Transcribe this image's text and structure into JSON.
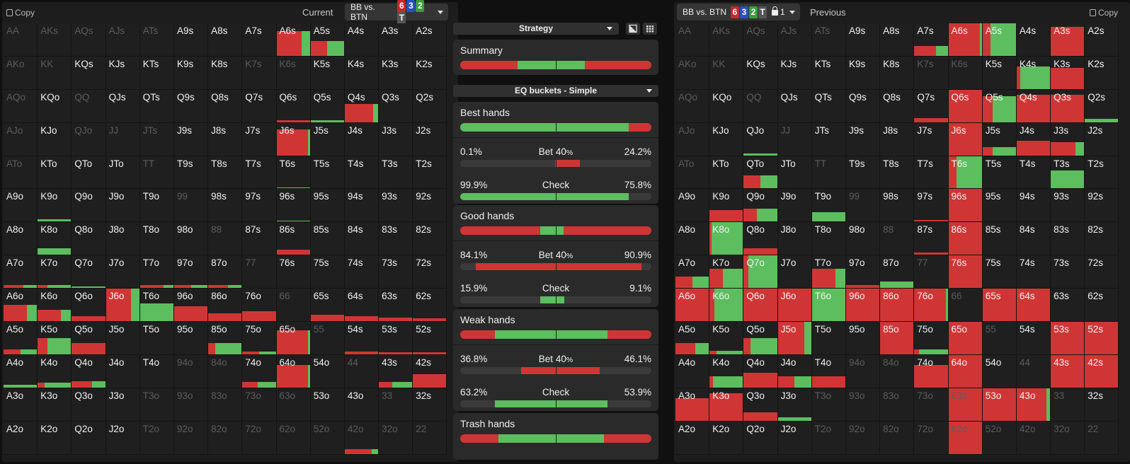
{
  "colors": {
    "bet": "#d03535",
    "check": "#5cbe5e",
    "panel": "#1d1d1d"
  },
  "board": [
    {
      "rank": "6",
      "color": "#c62828"
    },
    {
      "rank": "3",
      "color": "#2750c4"
    },
    {
      "rank": "2",
      "color": "#3a9d3a"
    },
    {
      "rank": "T",
      "color": "#555555"
    }
  ],
  "left": {
    "copy_label": "Copy",
    "label": "Current",
    "spot": "BB vs. BTN",
    "cells": {
      "A6s": [
        [
          0.75,
          0.75,
          0.25
        ]
      ],
      "A5s": [
        [
          0.45,
          0.5,
          0.5
        ]
      ],
      "Q5s": [
        [
          0.06,
          0,
          1
        ]
      ],
      "Q4s": [
        [
          0.55,
          0.85,
          0.15
        ]
      ],
      "J6s": [
        [
          0.8,
          0.95,
          0.05
        ]
      ],
      "T6s": [
        [
          0.04,
          0,
          1
        ]
      ],
      "96s": [
        [
          0.04,
          0,
          1
        ]
      ],
      "K9o": [
        [
          0.08,
          0,
          1
        ]
      ],
      "K8o": [
        [
          0.2,
          0,
          1
        ]
      ],
      "86s": [
        [
          0.15,
          1,
          0
        ]
      ],
      "Q6s": [
        [
          0.06,
          1,
          0
        ]
      ],
      "A7o": [
        [
          0.08,
          0.6,
          0.4
        ]
      ],
      "K7o": [
        [
          0.08,
          0.3,
          0.7
        ]
      ],
      "Q7o": [
        [
          0.04,
          0,
          1
        ]
      ],
      "T7o": [
        [
          0.1,
          0.7,
          0.3
        ]
      ],
      "97o": [
        [
          0.1,
          0.5,
          0.5
        ]
      ],
      "87o": [
        [
          0.1,
          0.6,
          0.4
        ]
      ],
      "A6o": [
        [
          0.5,
          0.7,
          0.3
        ]
      ],
      "K6o": [
        [
          0.35,
          0.7,
          0.3
        ]
      ],
      "Q6o": [
        [
          0.15,
          1,
          0
        ]
      ],
      "J6o": [
        [
          1,
          0.75,
          0.25
        ]
      ],
      "T6o": [
        [
          0.55,
          0,
          1
        ]
      ],
      "96o": [
        [
          0.45,
          1,
          0
        ]
      ],
      "86o": [
        [
          0.25,
          1,
          0
        ]
      ],
      "76o": [
        [
          0.3,
          1,
          0
        ]
      ],
      "65s": [
        [
          0.2,
          1,
          0
        ]
      ],
      "64s": [
        [
          0.15,
          1,
          0
        ]
      ],
      "63s": [
        [
          0.1,
          1,
          0
        ]
      ],
      "62s": [
        [
          0.08,
          1,
          0
        ]
      ],
      "A5o": [
        [
          0.15,
          0.5,
          0.5
        ]
      ],
      "K5o": [
        [
          0.5,
          0.3,
          0.7
        ]
      ],
      "Q5o": [
        [
          0.35,
          1,
          0
        ]
      ],
      "85o": [
        [
          0.35,
          0.2,
          0.8
        ]
      ],
      "75o": [
        [
          0.08,
          0.5,
          0.5
        ]
      ],
      "65o": [
        [
          0.75,
          0.95,
          0.05
        ]
      ],
      "54s": [
        [
          0.08,
          1,
          0
        ]
      ],
      "53s": [
        [
          0.06,
          1,
          0
        ]
      ],
      "52s": [
        [
          0.06,
          1,
          0
        ]
      ],
      "A4o": [
        [
          0.08,
          0,
          1
        ]
      ],
      "K4o": [
        [
          0.15,
          0.2,
          0.8
        ]
      ],
      "Q4o": [
        [
          0.2,
          0.6,
          0.4
        ]
      ],
      "74o": [
        [
          0.18,
          0.45,
          0.55
        ]
      ],
      "64o": [
        [
          0.7,
          0.95,
          0.05
        ]
      ],
      "43s": [
        [
          0.18,
          0.4,
          0.6
        ]
      ],
      "42s": [
        [
          0.4,
          1,
          0
        ]
      ],
      "42o": [
        [
          0.15,
          0.8,
          0.2
        ]
      ]
    },
    "dim": [
      "AA",
      "AKs",
      "AQs",
      "AJs",
      "ATs",
      "AKo",
      "KK",
      "K7s",
      "K6s",
      "AQo",
      "QQ",
      "AJo",
      "QJo",
      "JJ",
      "JTs",
      "ATo",
      "TT",
      "99",
      "88",
      "77",
      "66",
      "55",
      "94o",
      "84o",
      "44",
      "T3o",
      "93o",
      "83o",
      "73o",
      "63o",
      "33",
      "T2o",
      "92o",
      "82o",
      "72o",
      "62o",
      "52o",
      "42o",
      "32o",
      "22"
    ]
  },
  "right": {
    "copy_label": "Copy",
    "label": "Previous",
    "spot": "BB vs. BTN",
    "lock_count": "1",
    "cells": {
      "A7s": [
        [
          0.3,
          0.65,
          0.35
        ]
      ],
      "A6s": [
        [
          1,
          0.95,
          0.05
        ]
      ],
      "A5s": [
        [
          1,
          0.25,
          0.75
        ]
      ],
      "A3s": [
        [
          0.9,
          1,
          0
        ]
      ],
      "K4s": [
        [
          0.7,
          0.1,
          0.9
        ]
      ],
      "K3s": [
        [
          0.65,
          1,
          0
        ]
      ],
      "Q7s": [
        [
          0.12,
          1,
          0
        ]
      ],
      "Q6s": [
        [
          1,
          1,
          0
        ]
      ],
      "Q5s": [
        [
          0.8,
          0.3,
          0.7
        ]
      ],
      "Q4s": [
        [
          0.85,
          1,
          0
        ]
      ],
      "Q3s": [
        [
          0.85,
          1,
          0
        ]
      ],
      "Q2s": [
        [
          0.1,
          0,
          1
        ]
      ],
      "J6s": [
        [
          1,
          1,
          0
        ]
      ],
      "J5s": [
        [
          0.25,
          0.3,
          0.7
        ]
      ],
      "J4s": [
        [
          0.45,
          1,
          0
        ]
      ],
      "J3s": [
        [
          0.4,
          0.75,
          0.25
        ]
      ],
      "QJo": [
        [
          0.06,
          0,
          1
        ]
      ],
      "QTo": [
        [
          0.4,
          0.5,
          0.5
        ]
      ],
      "T6s": [
        [
          1,
          0.25,
          0.75
        ]
      ],
      "T3s": [
        [
          0.55,
          0,
          1
        ]
      ],
      "K9o": [
        [
          0.35,
          1,
          0
        ]
      ],
      "Q9o": [
        [
          0.4,
          0.4,
          0.6
        ]
      ],
      "T9o": [
        [
          0.3,
          0,
          1
        ]
      ],
      "97s": [
        [
          0.06,
          1,
          0
        ]
      ],
      "96s": [
        [
          1,
          1,
          0
        ]
      ],
      "K8o": [
        [
          1,
          0.05,
          0.95
        ]
      ],
      "Q8o": [
        [
          0.2,
          1,
          0
        ]
      ],
      "97o": [
        [
          0.1,
          1,
          0
        ]
      ],
      "87s": [
        [
          0.08,
          1,
          0
        ]
      ],
      "86s": [
        [
          1,
          1,
          0
        ]
      ],
      "A7o": [
        [
          0.35,
          0.5,
          0.5
        ]
      ],
      "K7o": [
        [
          0.6,
          0.4,
          0.6
        ]
      ],
      "Q7o": [
        [
          1,
          0.15,
          0.85
        ]
      ],
      "T7o": [
        [
          0.6,
          0.7,
          0.3
        ]
      ],
      "97o_dup": [
        [
          0,
          0,
          0
        ]
      ],
      "87o": [
        [
          0.2,
          0,
          1
        ]
      ],
      "76s": [
        [
          1,
          1,
          0
        ]
      ],
      "A6o": [
        [
          1,
          1,
          0
        ]
      ],
      "K6o": [
        [
          1,
          0.15,
          0.85
        ]
      ],
      "Q6o": [
        [
          1,
          1,
          0
        ]
      ],
      "J6o": [
        [
          1,
          1,
          0
        ]
      ],
      "T6o": [
        [
          1,
          0,
          1
        ]
      ],
      "96o": [
        [
          1,
          1,
          0
        ]
      ],
      "86o": [
        [
          1,
          1,
          0
        ]
      ],
      "76o": [
        [
          1,
          0.95,
          0.05
        ]
      ],
      "65s": [
        [
          1,
          1,
          0
        ]
      ],
      "64s": [
        [
          1,
          1,
          0
        ]
      ],
      "A5o": [
        [
          0.35,
          0.6,
          0.4
        ]
      ],
      "K5o": [
        [
          0.1,
          0.2,
          0.8
        ]
      ],
      "Q5o": [
        [
          0.5,
          0.2,
          0.8
        ]
      ],
      "J5o": [
        [
          1,
          0.8,
          0.2
        ]
      ],
      "85o": [
        [
          1,
          1,
          0
        ]
      ],
      "75o": [
        [
          0.15,
          0.15,
          0.85
        ]
      ],
      "65o": [
        [
          1,
          1,
          0
        ]
      ],
      "53s": [
        [
          1,
          1,
          0
        ]
      ],
      "52s": [
        [
          1,
          1,
          0
        ]
      ],
      "K4o": [
        [
          0.35,
          0.1,
          0.9
        ]
      ],
      "Q4o": [
        [
          0.45,
          1,
          0
        ]
      ],
      "J4o": [
        [
          0.35,
          0.5,
          0.5
        ]
      ],
      "T4o": [
        [
          0.35,
          1,
          0
        ]
      ],
      "74o": [
        [
          0.7,
          1,
          0
        ]
      ],
      "64o": [
        [
          1,
          1,
          0
        ]
      ],
      "43s": [
        [
          1,
          1,
          0
        ]
      ],
      "42s": [
        [
          1,
          1,
          0
        ]
      ],
      "A3o": [
        [
          0.7,
          1,
          0
        ]
      ],
      "K3o": [
        [
          0.85,
          1,
          0
        ]
      ],
      "Q3o": [
        [
          0.25,
          1,
          0
        ]
      ],
      "J3o": [
        [
          0.1,
          0,
          1
        ]
      ],
      "63o": [
        [
          1,
          1,
          0
        ]
      ],
      "53o": [
        [
          1,
          1,
          0
        ]
      ],
      "43o": [
        [
          1,
          0.9,
          0.1
        ]
      ],
      "62o": [
        [
          1,
          1,
          0
        ]
      ]
    },
    "dim": [
      "AA",
      "AKs",
      "AQs",
      "AJs",
      "ATs",
      "AKo",
      "KK",
      "K7s",
      "K6s",
      "AQo",
      "QQ",
      "AJo",
      "JJ",
      "ATo",
      "TT",
      "99",
      "88",
      "77",
      "66",
      "55",
      "94o",
      "84o",
      "44",
      "T3o",
      "93o",
      "83o",
      "73o",
      "63o",
      "33",
      "T2o",
      "92o",
      "82o",
      "72o",
      "62o",
      "52o",
      "42o",
      "32o",
      "22"
    ]
  },
  "middle": {
    "strategy_label": "Strategy",
    "eq_label": "EQ buckets - Simple",
    "summary": {
      "title": "Summary",
      "segments": [
        [
          0.3,
          "bet"
        ],
        [
          0.2,
          "check"
        ],
        [
          0.15,
          "check"
        ],
        [
          0.35,
          "bet"
        ]
      ]
    },
    "buckets": [
      {
        "title": "Best hands",
        "top": [
          [
            0.5,
            "check"
          ],
          [
            0.38,
            "check"
          ],
          [
            0.12,
            "bet"
          ]
        ],
        "bet": {
          "left": "0.1%",
          "label": "Bet",
          "size": "40",
          "pct": "%",
          "right": "24.2%",
          "fill": [
            0.495,
            0.625
          ]
        },
        "check": {
          "left": "99.9%",
          "label": "Check",
          "size": "",
          "pct": "",
          "right": "75.8%",
          "fill": [
            0,
            0.88
          ]
        }
      },
      {
        "title": "Good hands",
        "top": [
          [
            0.42,
            "bet"
          ],
          [
            0.08,
            "check"
          ],
          [
            0.04,
            "check"
          ],
          [
            0.46,
            "bet"
          ]
        ],
        "bet": {
          "left": "84.1%",
          "label": "Bet",
          "size": "40",
          "pct": "%",
          "right": "90.9%",
          "fill": [
            0.08,
            0.95
          ]
        },
        "check": {
          "left": "15.9%",
          "label": "Check",
          "size": "",
          "pct": "",
          "right": "9.1%",
          "fill": [
            0.42,
            0.545
          ]
        }
      },
      {
        "title": "Weak hands",
        "top": [
          [
            0.18,
            "bet"
          ],
          [
            0.32,
            "check"
          ],
          [
            0.27,
            "check"
          ],
          [
            0.23,
            "bet"
          ]
        ],
        "bet": {
          "left": "36.8%",
          "label": "Bet",
          "size": "40",
          "pct": "%",
          "right": "46.1%",
          "fill": [
            0.32,
            0.73
          ]
        },
        "check": {
          "left": "63.2%",
          "label": "Check",
          "size": "",
          "pct": "",
          "right": "53.9%",
          "fill": [
            0.18,
            0.77
          ]
        }
      },
      {
        "title": "Trash hands",
        "top": [
          [
            0.2,
            "bet"
          ],
          [
            0.3,
            "check"
          ],
          [
            0.25,
            "check"
          ],
          [
            0.25,
            "bet"
          ]
        ]
      }
    ]
  },
  "ranks": [
    "A",
    "K",
    "Q",
    "J",
    "T",
    "9",
    "8",
    "7",
    "6",
    "5",
    "4",
    "3",
    "2"
  ]
}
